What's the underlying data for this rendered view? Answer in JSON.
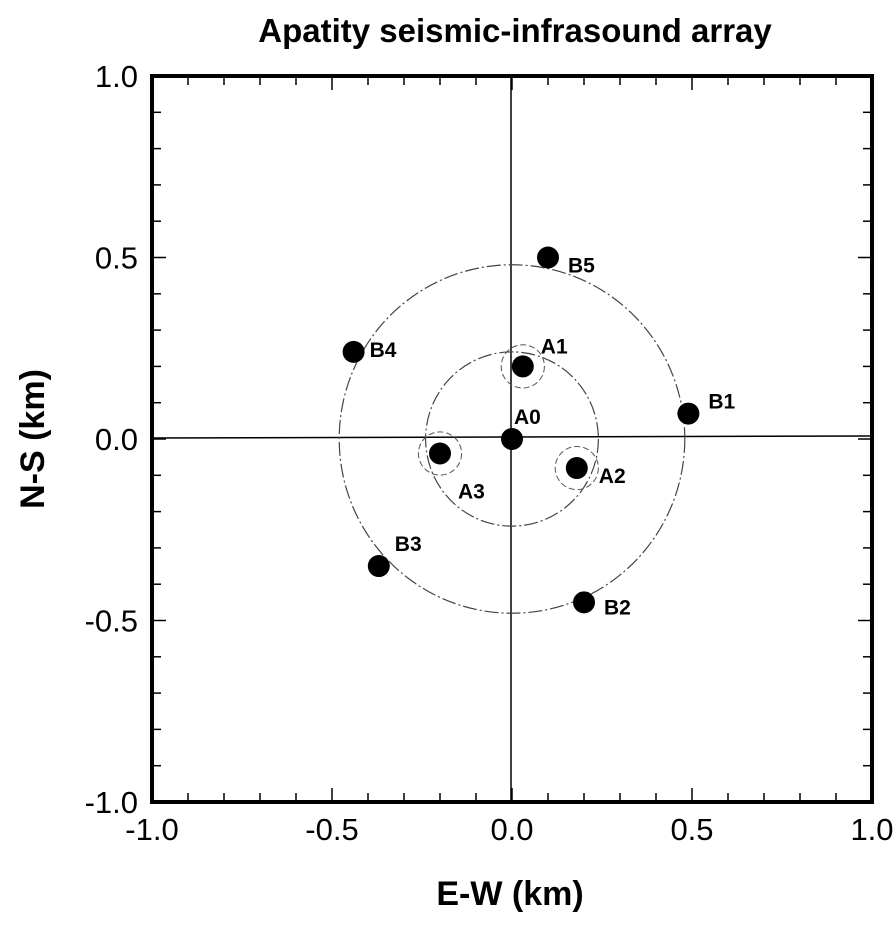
{
  "chart_data": {
    "type": "scatter",
    "title": "Apatity seismic-infrasound array",
    "xlabel": "E-W (km)",
    "ylabel": "N-S (km)",
    "xlim": [
      -1.0,
      1.0
    ],
    "ylim": [
      -1.0,
      1.0
    ],
    "xticks": [
      "-1.0",
      "-0.5",
      "0.0",
      "0.5",
      "1.0"
    ],
    "yticks": [
      "1.0",
      "0.5",
      "0.0",
      "-0.5",
      "-1.0"
    ],
    "tick_values": [
      -1.0,
      -0.5,
      0.0,
      0.5,
      1.0
    ],
    "grid": false,
    "zero_lines": true,
    "rings": [
      0.24,
      0.48
    ],
    "small_ring": 0.06,
    "points": [
      {
        "label": "A0",
        "x": 0.0,
        "y": 0.0
      },
      {
        "label": "A1",
        "x": 0.03,
        "y": 0.2
      },
      {
        "label": "A2",
        "x": 0.18,
        "y": -0.08
      },
      {
        "label": "A3",
        "x": -0.2,
        "y": -0.04
      },
      {
        "label": "B1",
        "x": 0.49,
        "y": 0.07
      },
      {
        "label": "B2",
        "x": 0.2,
        "y": -0.45
      },
      {
        "label": "B3",
        "x": -0.37,
        "y": -0.35
      },
      {
        "label": "B4",
        "x": -0.44,
        "y": 0.24
      },
      {
        "label": "B5",
        "x": 0.1,
        "y": 0.5
      }
    ]
  }
}
